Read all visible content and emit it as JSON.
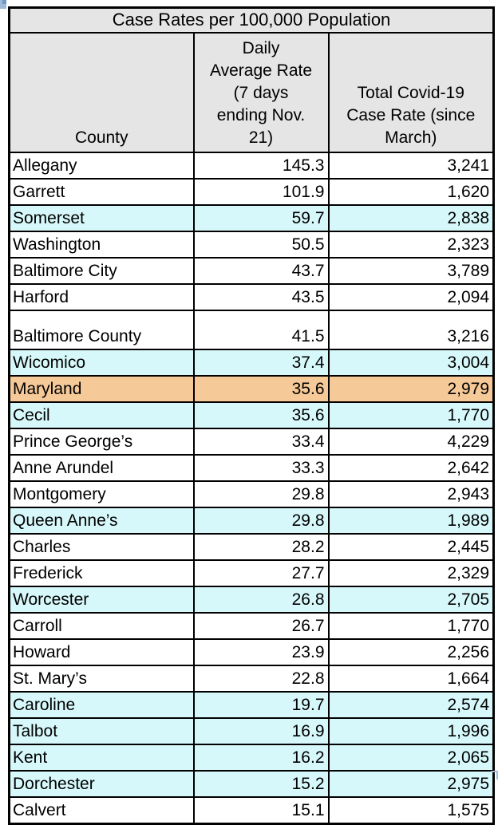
{
  "table": {
    "title": "Case Rates per 100,000 Population",
    "columns": [
      {
        "label": "County"
      },
      {
        "label": "Daily\nAverage Rate\n(7 days\nending Nov.\n21)"
      },
      {
        "label": "Total Covid-19\nCase Rate (since\nMarch)"
      }
    ]
  },
  "colors": {
    "header_bg": "#e5e5e5",
    "row_cyan": "#d7f8fa",
    "row_orange": "#f6c998",
    "border": "#000000"
  },
  "chart_data": {
    "type": "table",
    "title": "Case Rates per 100,000 Population",
    "columns": [
      "County",
      "Daily Average Rate (7 days ending Nov. 21)",
      "Total Covid-19 Case Rate (since March)"
    ],
    "rows": [
      {
        "county": "Allegany",
        "daily": 145.3,
        "total": 3241,
        "highlight": null,
        "tall": false
      },
      {
        "county": "Garrett",
        "daily": 101.9,
        "total": 1620,
        "highlight": null,
        "tall": false
      },
      {
        "county": "Somerset",
        "daily": 59.7,
        "total": 2838,
        "highlight": "cyan",
        "tall": false
      },
      {
        "county": "Washington",
        "daily": 50.5,
        "total": 2323,
        "highlight": null,
        "tall": false
      },
      {
        "county": "Baltimore City",
        "daily": 43.7,
        "total": 3789,
        "highlight": null,
        "tall": false
      },
      {
        "county": "Harford",
        "daily": 43.5,
        "total": 2094,
        "highlight": null,
        "tall": false
      },
      {
        "county": "Baltimore County",
        "daily": 41.5,
        "total": 3216,
        "highlight": null,
        "tall": true
      },
      {
        "county": "Wicomico",
        "daily": 37.4,
        "total": 3004,
        "highlight": "cyan",
        "tall": false
      },
      {
        "county": "Maryland",
        "daily": 35.6,
        "total": 2979,
        "highlight": "orange",
        "tall": false
      },
      {
        "county": "Cecil",
        "daily": 35.6,
        "total": 1770,
        "highlight": "cyan",
        "tall": false
      },
      {
        "county": "Prince George’s",
        "daily": 33.4,
        "total": 4229,
        "highlight": null,
        "tall": false
      },
      {
        "county": "Anne Arundel",
        "daily": 33.3,
        "total": 2642,
        "highlight": null,
        "tall": false
      },
      {
        "county": "Montgomery",
        "daily": 29.8,
        "total": 2943,
        "highlight": null,
        "tall": false
      },
      {
        "county": "Queen Anne’s",
        "daily": 29.8,
        "total": 1989,
        "highlight": "cyan",
        "tall": false
      },
      {
        "county": "Charles",
        "daily": 28.2,
        "total": 2445,
        "highlight": null,
        "tall": false
      },
      {
        "county": "Frederick",
        "daily": 27.7,
        "total": 2329,
        "highlight": null,
        "tall": false
      },
      {
        "county": "Worcester",
        "daily": 26.8,
        "total": 2705,
        "highlight": "cyan",
        "tall": false
      },
      {
        "county": "Carroll",
        "daily": 26.7,
        "total": 1770,
        "highlight": null,
        "tall": false
      },
      {
        "county": "Howard",
        "daily": 23.9,
        "total": 2256,
        "highlight": null,
        "tall": false
      },
      {
        "county": "St. Mary’s",
        "daily": 22.8,
        "total": 1664,
        "highlight": null,
        "tall": false
      },
      {
        "county": "Caroline",
        "daily": 19.7,
        "total": 2574,
        "highlight": "cyan",
        "tall": false
      },
      {
        "county": "Talbot",
        "daily": 16.9,
        "total": 1996,
        "highlight": "cyan",
        "tall": false
      },
      {
        "county": "Kent",
        "daily": 16.2,
        "total": 2065,
        "highlight": "cyan",
        "tall": false
      },
      {
        "county": "Dorchester",
        "daily": 15.2,
        "total": 2975,
        "highlight": "cyan",
        "tall": false
      },
      {
        "county": "Calvert",
        "daily": 15.1,
        "total": 1575,
        "highlight": null,
        "tall": false
      }
    ]
  }
}
